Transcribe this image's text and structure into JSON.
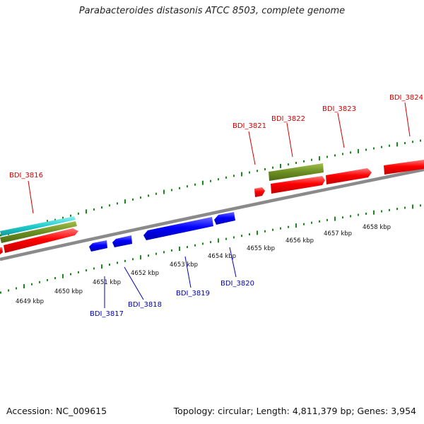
{
  "title": "Parabacteroides distasonis ATCC 8503, complete genome",
  "footer": {
    "accession": "Accession: NC_009615",
    "info": "Topology: circular; Length: 4,811,379 bp; Genes: 3,954"
  },
  "colors": {
    "forward_cds": "#ff0000",
    "reverse_cds": "#0000ff",
    "track_green": "#6b8e23",
    "track_cyan": "#22cccc",
    "backbone": "#888888",
    "ticks": "#1a8a1a"
  },
  "forward_labels": [
    "BDI_3816",
    "BDI_3821",
    "BDI_3822",
    "BDI_3823",
    "BDI_3824"
  ],
  "reverse_labels": [
    "BDI_3817",
    "BDI_3818",
    "BDI_3819",
    "BDI_3820"
  ],
  "scale_labels": [
    "4649 kbp",
    "4650 kbp",
    "4651 kbp",
    "4652 kbp",
    "4653 kbp",
    "4654 kbp",
    "4655 kbp",
    "4656 kbp",
    "4657 kbp",
    "4658 kbp"
  ]
}
